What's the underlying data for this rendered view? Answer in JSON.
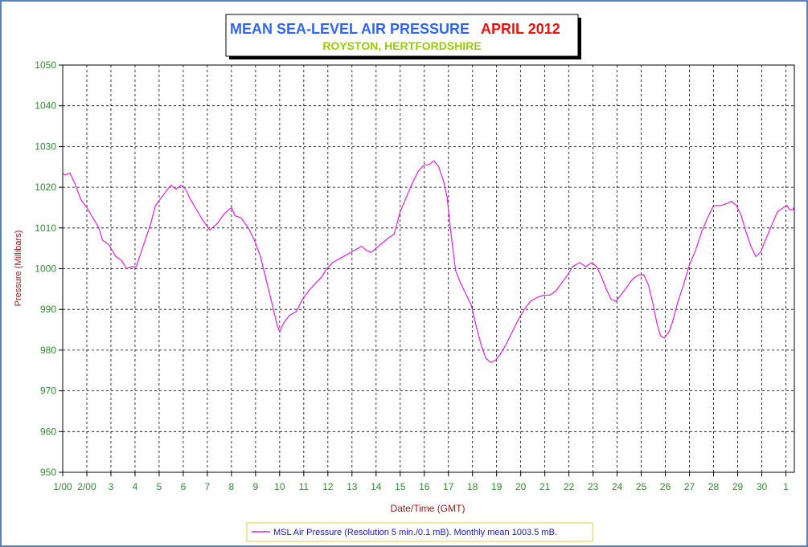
{
  "chart_data": {
    "type": "line",
    "title": "MEAN SEA-LEVEL AIR PRESSURE",
    "title_period": "APRIL 2012",
    "subtitle": "ROYSTON, HERTFORDSHIRE",
    "xlabel": "Date/Time (GMT)",
    "ylabel": "Pressure (Millibars)",
    "ylim": [
      950,
      1050
    ],
    "yticks": [
      "950",
      "960",
      "970",
      "980",
      "990",
      "1000",
      "1010",
      "1020",
      "1030",
      "1040",
      "1050"
    ],
    "xlim": [
      1,
      31.35
    ],
    "xticks": [
      {
        "day": 1,
        "label": "1/00"
      },
      {
        "day": 2,
        "label": "2/00"
      },
      {
        "day": 3,
        "label": "3"
      },
      {
        "day": 4,
        "label": "4"
      },
      {
        "day": 5,
        "label": "5"
      },
      {
        "day": 6,
        "label": "6"
      },
      {
        "day": 7,
        "label": "7"
      },
      {
        "day": 8,
        "label": "8"
      },
      {
        "day": 9,
        "label": "9"
      },
      {
        "day": 10,
        "label": "10"
      },
      {
        "day": 11,
        "label": "11"
      },
      {
        "day": 12,
        "label": "12"
      },
      {
        "day": 13,
        "label": "13"
      },
      {
        "day": 14,
        "label": "14"
      },
      {
        "day": 15,
        "label": "15"
      },
      {
        "day": 16,
        "label": "16"
      },
      {
        "day": 17,
        "label": "17"
      },
      {
        "day": 18,
        "label": "18"
      },
      {
        "day": 19,
        "label": "19"
      },
      {
        "day": 20,
        "label": "20"
      },
      {
        "day": 21,
        "label": "21"
      },
      {
        "day": 22,
        "label": "22"
      },
      {
        "day": 23,
        "label": "23"
      },
      {
        "day": 24,
        "label": "24"
      },
      {
        "day": 25,
        "label": "25"
      },
      {
        "day": 26,
        "label": "26"
      },
      {
        "day": 27,
        "label": "27"
      },
      {
        "day": 28,
        "label": "28"
      },
      {
        "day": 29,
        "label": "29"
      },
      {
        "day": 30,
        "label": "30"
      },
      {
        "day": 31,
        "label": "1"
      }
    ],
    "grid": true,
    "legend_position": "bottom-center",
    "series": [
      {
        "name": "MSL Air Pressure (Resolution 5 min./0.1 mB). Monthly mean 1003.5 mB.",
        "color": "#e020e0",
        "points": [
          [
            1.0,
            1023.5
          ],
          [
            1.1,
            1023.0
          ],
          [
            1.3,
            1023.5
          ],
          [
            1.5,
            1021.0
          ],
          [
            1.75,
            1017.0
          ],
          [
            2.0,
            1015.0
          ],
          [
            2.3,
            1012.0
          ],
          [
            2.5,
            1010.0
          ],
          [
            2.65,
            1007.0
          ],
          [
            2.9,
            1006.0
          ],
          [
            3.2,
            1003.0
          ],
          [
            3.45,
            1002.0
          ],
          [
            3.65,
            1000.0
          ],
          [
            3.85,
            1000.5
          ],
          [
            4.05,
            1000.5
          ],
          [
            4.25,
            1004.0
          ],
          [
            4.45,
            1007.5
          ],
          [
            4.65,
            1011.0
          ],
          [
            4.85,
            1015.5
          ],
          [
            5.1,
            1017.5
          ],
          [
            5.35,
            1019.5
          ],
          [
            5.5,
            1020.5
          ],
          [
            5.7,
            1019.5
          ],
          [
            5.9,
            1020.5
          ],
          [
            6.1,
            1019.5
          ],
          [
            6.3,
            1017.0
          ],
          [
            6.55,
            1014.5
          ],
          [
            6.8,
            1012.0
          ],
          [
            7.1,
            1009.5
          ],
          [
            7.4,
            1011.0
          ],
          [
            7.7,
            1013.5
          ],
          [
            7.9,
            1014.5
          ],
          [
            8.0,
            1015.0
          ],
          [
            8.15,
            1013.0
          ],
          [
            8.4,
            1012.5
          ],
          [
            8.7,
            1010.0
          ],
          [
            8.95,
            1007.0
          ],
          [
            9.2,
            1003.0
          ],
          [
            9.45,
            997.0
          ],
          [
            9.7,
            991.0
          ],
          [
            9.9,
            986.0
          ],
          [
            10.0,
            984.5
          ],
          [
            10.15,
            986.5
          ],
          [
            10.4,
            988.5
          ],
          [
            10.7,
            989.5
          ],
          [
            10.95,
            992.5
          ],
          [
            11.2,
            994.5
          ],
          [
            11.5,
            996.5
          ],
          [
            11.75,
            998.0
          ],
          [
            11.95,
            1000.0
          ],
          [
            12.2,
            1001.5
          ],
          [
            12.5,
            1002.5
          ],
          [
            12.8,
            1003.5
          ],
          [
            13.1,
            1004.5
          ],
          [
            13.4,
            1005.5
          ],
          [
            13.6,
            1004.5
          ],
          [
            13.8,
            1004.0
          ],
          [
            14.0,
            1005.0
          ],
          [
            14.3,
            1006.5
          ],
          [
            14.5,
            1007.5
          ],
          [
            14.75,
            1008.5
          ],
          [
            15.0,
            1014.0
          ],
          [
            15.25,
            1017.5
          ],
          [
            15.5,
            1021.0
          ],
          [
            15.75,
            1024.0
          ],
          [
            16.0,
            1025.5
          ],
          [
            16.2,
            1025.5
          ],
          [
            16.4,
            1026.5
          ],
          [
            16.6,
            1025.0
          ],
          [
            16.8,
            1021.5
          ],
          [
            16.95,
            1017.5
          ],
          [
            17.1,
            1009.0
          ],
          [
            17.3,
            999.5
          ],
          [
            17.5,
            996.5
          ],
          [
            17.75,
            993.5
          ],
          [
            17.95,
            991.0
          ],
          [
            18.15,
            986.0
          ],
          [
            18.35,
            981.5
          ],
          [
            18.55,
            978.0
          ],
          [
            18.75,
            977.0
          ],
          [
            18.95,
            977.5
          ],
          [
            19.15,
            979.0
          ],
          [
            19.4,
            981.5
          ],
          [
            19.65,
            984.5
          ],
          [
            19.9,
            987.5
          ],
          [
            20.15,
            990.0
          ],
          [
            20.4,
            992.0
          ],
          [
            20.7,
            993.0
          ],
          [
            20.95,
            993.5
          ],
          [
            21.2,
            993.5
          ],
          [
            21.45,
            994.5
          ],
          [
            21.7,
            996.5
          ],
          [
            21.95,
            998.5
          ],
          [
            22.15,
            1000.5
          ],
          [
            22.45,
            1001.5
          ],
          [
            22.7,
            1000.5
          ],
          [
            22.95,
            1001.5
          ],
          [
            23.15,
            1000.5
          ],
          [
            23.35,
            998.0
          ],
          [
            23.55,
            995.0
          ],
          [
            23.75,
            992.5
          ],
          [
            23.95,
            992.0
          ],
          [
            24.15,
            993.5
          ],
          [
            24.4,
            995.5
          ],
          [
            24.65,
            997.5
          ],
          [
            24.9,
            998.5
          ],
          [
            25.1,
            998.5
          ],
          [
            25.3,
            996.0
          ],
          [
            25.5,
            991.0
          ],
          [
            25.65,
            986.5
          ],
          [
            25.8,
            983.5
          ],
          [
            25.95,
            983.0
          ],
          [
            26.15,
            984.5
          ],
          [
            26.3,
            987.0
          ],
          [
            26.5,
            991.5
          ],
          [
            26.75,
            996.0
          ],
          [
            27.0,
            1001.0
          ],
          [
            27.25,
            1004.5
          ],
          [
            27.5,
            1009.0
          ],
          [
            27.75,
            1012.5
          ],
          [
            28.0,
            1015.5
          ],
          [
            28.3,
            1015.5
          ],
          [
            28.55,
            1016.0
          ],
          [
            28.75,
            1016.5
          ],
          [
            28.95,
            1015.5
          ],
          [
            29.15,
            1013.0
          ],
          [
            29.35,
            1009.0
          ],
          [
            29.55,
            1005.5
          ],
          [
            29.75,
            1003.0
          ],
          [
            29.95,
            1004.0
          ],
          [
            30.15,
            1007.0
          ],
          [
            30.4,
            1010.5
          ],
          [
            30.65,
            1014.0
          ],
          [
            30.9,
            1015.0
          ],
          [
            31.05,
            1015.5
          ],
          [
            31.15,
            1014.5
          ],
          [
            31.3,
            1014.5
          ],
          [
            31.35,
            1015.5
          ]
        ]
      }
    ]
  }
}
